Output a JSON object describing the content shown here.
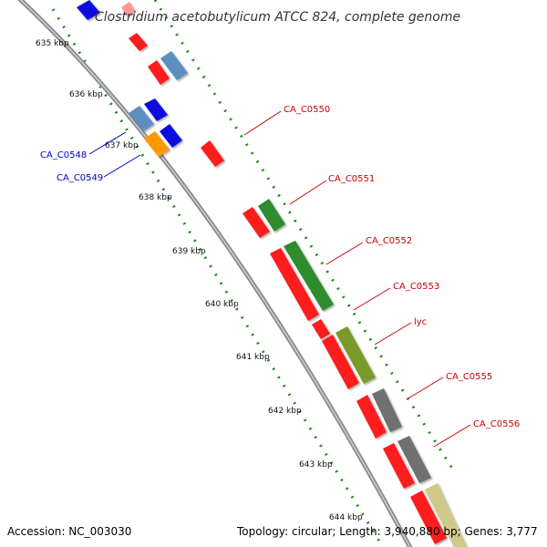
{
  "title": "Clostridium acetobutylicum ATCC 824, complete genome",
  "footer": {
    "accession": "Accession: NC_003030",
    "topology": "Topology: circular; Length: 3,940,880 bp; Genes: 3,777"
  },
  "ticks": [
    "635 kbp",
    "636 kbp",
    "637 kbp",
    "638 kbp",
    "639 kbp",
    "640 kbp",
    "641 kbp",
    "642 kbp",
    "643 kbp",
    "644 kbp"
  ],
  "genes_forward": [
    "CA_C0550",
    "CA_C0551",
    "CA_C0552",
    "CA_C0553",
    "lyc",
    "CA_C0555",
    "CA_C0556"
  ],
  "genes_reverse": [
    "CA_C0548",
    "CA_C0549"
  ],
  "colors": {
    "backbone": "#8a8a8a",
    "tick": "#1a8a1a",
    "forward_label": "#cc0000",
    "reverse_label": "#0000cc",
    "red": "#ff1a1a",
    "green": "#2e8b2e",
    "olive": "#7a9a2a",
    "gray": "#707070",
    "khaki": "#cfc98a",
    "steelblue": "#5b8fc0",
    "blue": "#1010e0",
    "orange": "#ff9900"
  }
}
